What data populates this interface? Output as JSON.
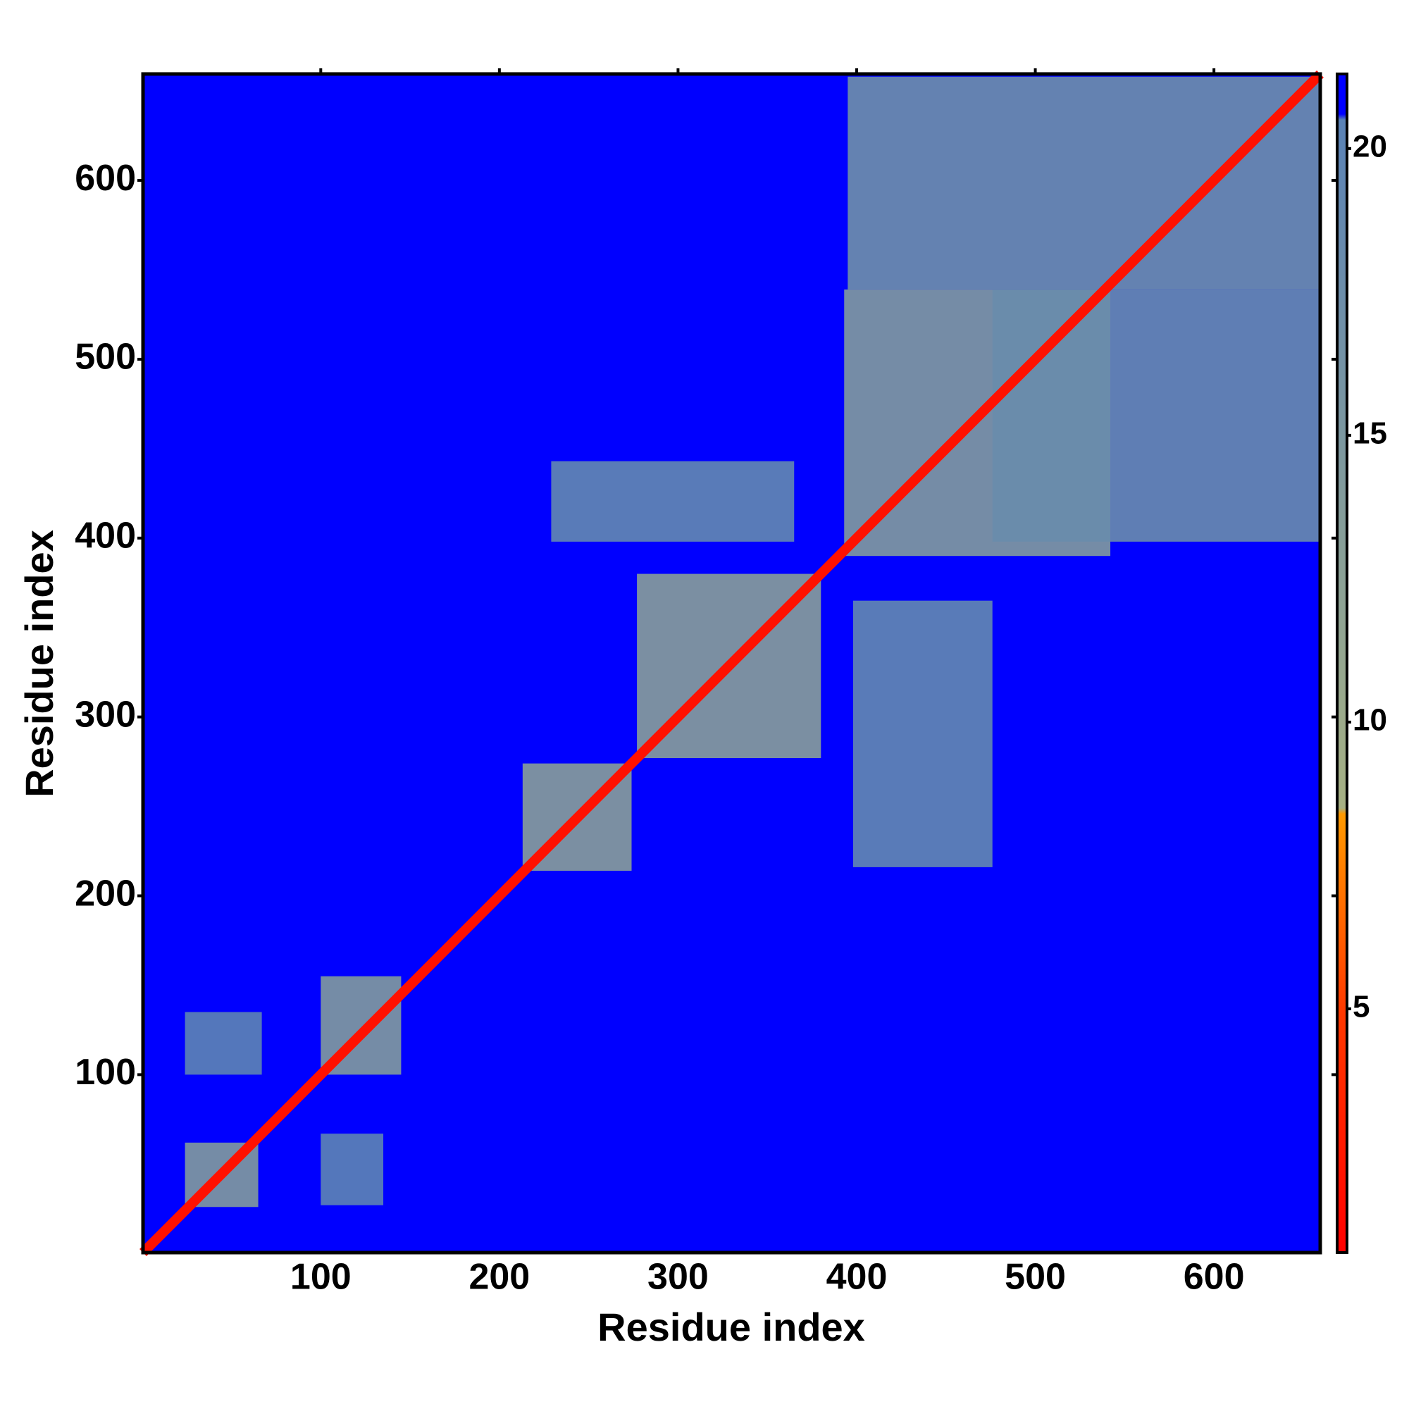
{
  "chart_data": {
    "type": "contact_map",
    "xlabel": "Residue index",
    "ylabel": "Residue index",
    "xlim": [
      0.5,
      659.5
    ],
    "ylim": [
      0.5,
      659.5
    ],
    "xticks": [
      100,
      200,
      300,
      400,
      500,
      600
    ],
    "yticks": [
      100,
      200,
      300,
      400,
      500,
      600
    ],
    "background_value": 21,
    "diagonal_value": 2,
    "regions": [
      {
        "x": [
          24,
          65
        ],
        "y": [
          26,
          62
        ],
        "value": 14
      },
      {
        "x": [
          100,
          145
        ],
        "y": [
          100,
          155
        ],
        "value": 14
      },
      {
        "x": [
          213,
          274
        ],
        "y": [
          214,
          274
        ],
        "value": 13
      },
      {
        "x": [
          277,
          380
        ],
        "y": [
          277,
          380
        ],
        "value": 13
      },
      {
        "x": [
          393,
          542
        ],
        "y": [
          390,
          539
        ],
        "value": 14
      },
      {
        "x": [
          395,
          659
        ],
        "y": [
          539,
          658
        ],
        "value": 17
      },
      {
        "x": [
          476,
          659
        ],
        "y": [
          398,
          539
        ],
        "value": 18
      },
      {
        "x": [
          229,
          365
        ],
        "y": [
          398,
          443
        ],
        "value": 19
      },
      {
        "x": [
          398,
          476
        ],
        "y": [
          216,
          365
        ],
        "value": 19
      },
      {
        "x": [
          100,
          135
        ],
        "y": [
          27,
          67
        ],
        "value": 20
      },
      {
        "x": [
          24,
          67
        ],
        "y": [
          100,
          135
        ],
        "value": 20
      }
    ],
    "colorbar": {
      "lim": [
        0.75,
        21.3
      ],
      "ticks": [
        5,
        10,
        15,
        20
      ],
      "stops": [
        {
          "value": 0.75,
          "color": "#ff0000"
        },
        {
          "value": 5,
          "color": "#ff3a00"
        },
        {
          "value": 8.4,
          "color": "#ff9a00"
        },
        {
          "value": 8.5,
          "color": "#a6b083"
        },
        {
          "value": 12,
          "color": "#8ea394"
        },
        {
          "value": 20.5,
          "color": "#5a82b6"
        },
        {
          "value": 20.6,
          "color": "#0000ff"
        },
        {
          "value": 21.3,
          "color": "#0000ff"
        }
      ]
    }
  }
}
